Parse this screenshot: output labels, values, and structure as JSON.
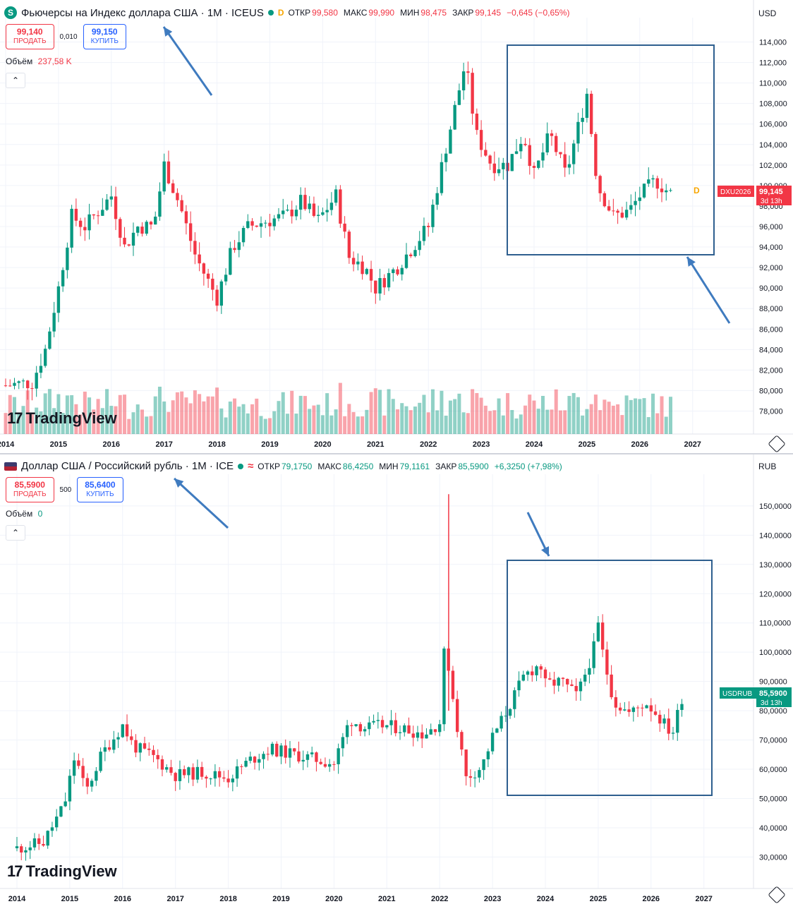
{
  "top": {
    "title": "Фьючерсы на Индекс доллара США · 1М · ICEUS",
    "symbol_icon": "S",
    "interval_badge": "D",
    "ohlc": {
      "o_label": "ОТКР",
      "o": "99,580",
      "h_label": "МАКС",
      "h": "99,990",
      "l_label": "МИН",
      "l": "98,475",
      "c_label": "ЗАКР",
      "c": "99,145",
      "change": "−0,645 (−0,65%)"
    },
    "sell": {
      "price": "99,140",
      "label": "ПРОДАТЬ"
    },
    "spread": "0,010",
    "buy": {
      "price": "99,150",
      "label": "КУПИТЬ"
    },
    "volume_label": "Объём",
    "volume_value": "237,58 K",
    "currency": "USD",
    "ticker_label": "DXU2026",
    "price_label": "99,145",
    "countdown": "3d 13h",
    "d_marker": "D",
    "logo": "TradingView",
    "colors": {
      "up": "#089981",
      "down": "#f23645",
      "box": "#2e5f8f",
      "arrow": "#3f7bbf",
      "label_bg": "#f23645"
    }
  },
  "bottom": {
    "title": "Доллар США / Российский рубль · 1М · ICE",
    "interval_badge": "≈",
    "ohlc": {
      "o_label": "ОТКР",
      "o": "79,1750",
      "h_label": "МАКС",
      "h": "86,4250",
      "l_label": "МИН",
      "l": "79,1161",
      "c_label": "ЗАКР",
      "c": "85,5900",
      "change": "+6,3250 (+7,98%)"
    },
    "sell": {
      "price": "85,5900",
      "label": "ПРОДАТЬ"
    },
    "spread": "500",
    "buy": {
      "price": "85,6400",
      "label": "КУПИТЬ"
    },
    "volume_label": "Объём",
    "volume_value": "0",
    "currency": "RUB",
    "ticker_label": "USDRUB",
    "price_label": "85,5900",
    "countdown": "3d 13h",
    "logo": "TradingView",
    "colors": {
      "label_bg": "#089981"
    }
  },
  "chart_data": [
    {
      "type": "candlestick",
      "title": "Фьючерсы на Индекс доллара США · 1М · ICEUS",
      "x_ticks": [
        "2014",
        "2015",
        "2016",
        "2017",
        "2018",
        "2019",
        "2020",
        "2021",
        "2022",
        "2023",
        "2024",
        "2025",
        "2026",
        "2027"
      ],
      "y_ticks": [
        "114,000",
        "112,000",
        "110,000",
        "108,000",
        "106,000",
        "104,000",
        "102,000",
        "100,000",
        "98,000",
        "96,000",
        "94,000",
        "92,000",
        "90,000",
        "88,000",
        "86,000",
        "84,000",
        "82,000",
        "80,000",
        "78,000"
      ],
      "ylim": [
        77,
        115
      ],
      "close_path": [
        [
          2014.0,
          80.5
        ],
        [
          2014.5,
          80.8
        ],
        [
          2014.75,
          84
        ],
        [
          2015.0,
          90
        ],
        [
          2015.25,
          97
        ],
        [
          2015.5,
          96
        ],
        [
          2016.0,
          99
        ],
        [
          2016.25,
          94
        ],
        [
          2016.5,
          96
        ],
        [
          2016.8,
          96
        ],
        [
          2017.0,
          102
        ],
        [
          2017.3,
          98
        ],
        [
          2017.6,
          93
        ],
        [
          2018.0,
          89
        ],
        [
          2018.3,
          94
        ],
        [
          2018.6,
          96
        ],
        [
          2018.9,
          96.5
        ],
        [
          2019.3,
          97
        ],
        [
          2019.6,
          98.5
        ],
        [
          2019.9,
          96.5
        ],
        [
          2020.25,
          99
        ],
        [
          2020.5,
          93
        ],
        [
          2020.8,
          92
        ],
        [
          2021.0,
          90
        ],
        [
          2021.4,
          92
        ],
        [
          2021.7,
          94
        ],
        [
          2022.0,
          96
        ],
        [
          2022.3,
          103
        ],
        [
          2022.7,
          112
        ],
        [
          2022.9,
          105
        ],
        [
          2023.2,
          102
        ],
        [
          2023.5,
          102
        ],
        [
          2023.8,
          105
        ],
        [
          2024.0,
          101
        ],
        [
          2024.3,
          105
        ],
        [
          2024.6,
          101
        ],
        [
          2024.9,
          107
        ],
        [
          2025.0,
          109
        ],
        [
          2025.2,
          100
        ],
        [
          2025.5,
          97
        ],
        [
          2025.8,
          97.5
        ],
        [
          2026.0,
          99
        ],
        [
          2026.3,
          100.5
        ],
        [
          2026.6,
          99.1
        ]
      ]
    },
    {
      "type": "candlestick",
      "title": "Доллар США / Российский рубль · 1М · ICE",
      "x_ticks": [
        "2014",
        "2015",
        "2016",
        "2017",
        "2018",
        "2019",
        "2020",
        "2021",
        "2022",
        "2023",
        "2024",
        "2025",
        "2026",
        "2027"
      ],
      "y_ticks": [
        "150,0000",
        "140,0000",
        "130,0000",
        "120,0000",
        "110,0000",
        "100,0000",
        "90,0000",
        "80,0000",
        "70,0000",
        "60,0000",
        "50,0000",
        "40,0000",
        "30,0000"
      ],
      "ylim": [
        26,
        156
      ],
      "spike": {
        "x": 2022.17,
        "high": 154
      },
      "close_path": [
        [
          2014.0,
          33
        ],
        [
          2014.5,
          35
        ],
        [
          2014.9,
          48
        ],
        [
          2015.1,
          65
        ],
        [
          2015.3,
          52
        ],
        [
          2015.6,
          65
        ],
        [
          2016.0,
          75
        ],
        [
          2016.2,
          68
        ],
        [
          2016.6,
          64
        ],
        [
          2017.0,
          58
        ],
        [
          2017.5,
          59
        ],
        [
          2018.0,
          57
        ],
        [
          2018.4,
          63
        ],
        [
          2018.8,
          67
        ],
        [
          2019.0,
          66
        ],
        [
          2019.5,
          64
        ],
        [
          2020.0,
          62
        ],
        [
          2020.3,
          77
        ],
        [
          2020.6,
          74
        ],
        [
          2020.9,
          75
        ],
        [
          2021.3,
          74
        ],
        [
          2021.7,
          72
        ],
        [
          2022.0,
          76
        ],
        [
          2022.1,
          104
        ],
        [
          2022.3,
          78
        ],
        [
          2022.5,
          57
        ],
        [
          2022.8,
          61
        ],
        [
          2023.0,
          71
        ],
        [
          2023.3,
          81
        ],
        [
          2023.6,
          92
        ],
        [
          2023.9,
          96
        ],
        [
          2024.0,
          89
        ],
        [
          2024.3,
          90
        ],
        [
          2024.6,
          85
        ],
        [
          2024.9,
          100
        ],
        [
          2025.0,
          109
        ],
        [
          2025.1,
          98
        ],
        [
          2025.3,
          83
        ],
        [
          2025.6,
          79
        ],
        [
          2025.9,
          83
        ],
        [
          2026.1,
          79
        ],
        [
          2026.4,
          72
        ],
        [
          2026.6,
          85.6
        ]
      ]
    }
  ]
}
